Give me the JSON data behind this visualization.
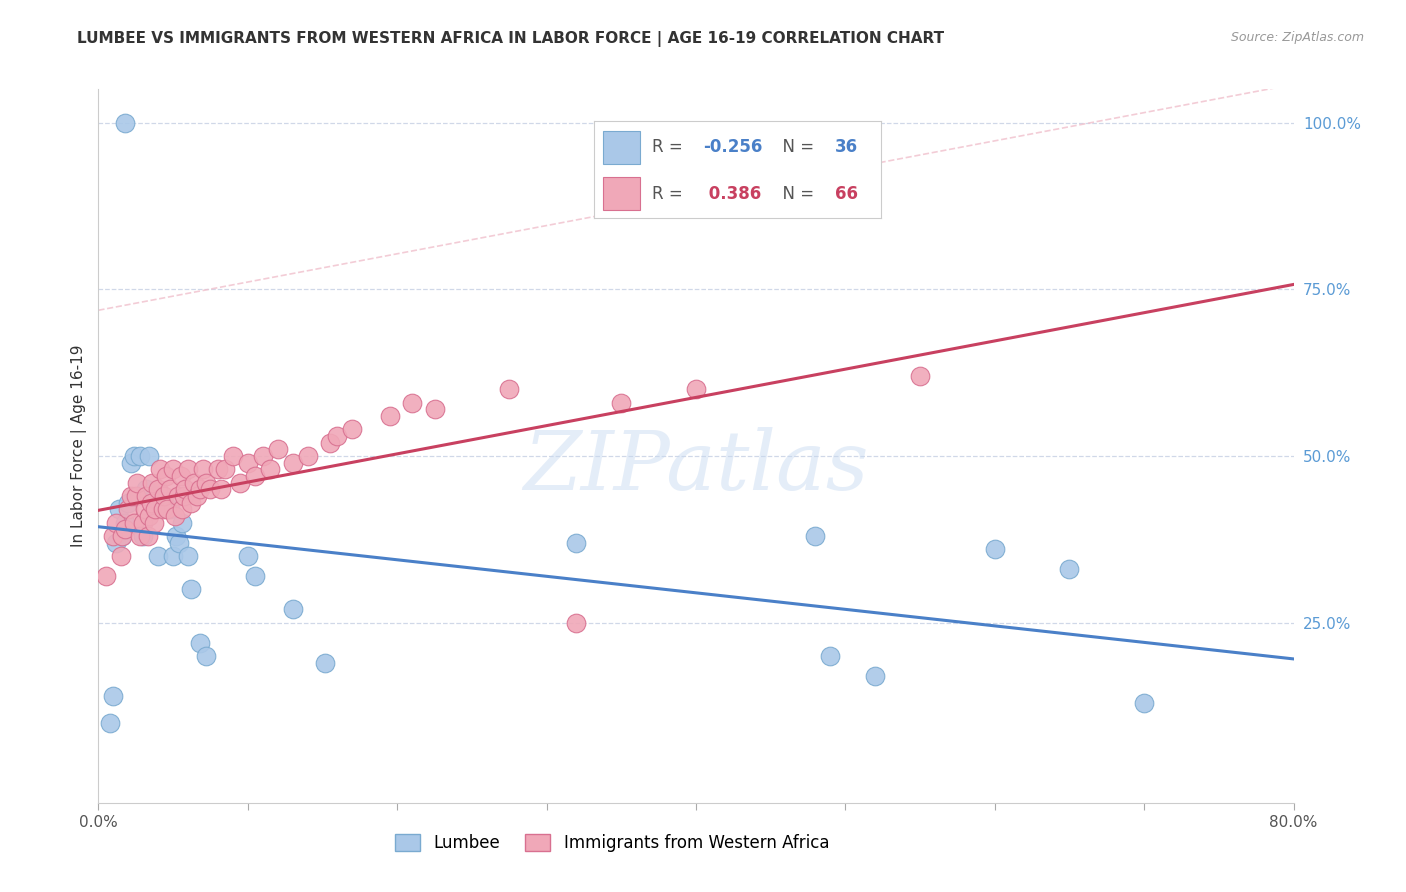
{
  "title": "LUMBEE VS IMMIGRANTS FROM WESTERN AFRICA IN LABOR FORCE | AGE 16-19 CORRELATION CHART",
  "source": "Source: ZipAtlas.com",
  "ylabel": "In Labor Force | Age 16-19",
  "xlim": [
    0.0,
    0.8
  ],
  "ylim": [
    -0.02,
    1.05
  ],
  "lumbee_color": "#aac8e8",
  "lumbee_edge_color": "#7aaad0",
  "immigrants_color": "#f0a8b8",
  "immigrants_edge_color": "#d87090",
  "lumbee_line_color": "#4a80c8",
  "immigrants_line_color": "#c84060",
  "immigrants_dashed_color": "#f0c0cc",
  "lumbee_R": -0.256,
  "lumbee_N": 36,
  "immigrants_R": 0.386,
  "immigrants_N": 66,
  "lumbee_x": [
    0.018,
    0.008,
    0.01,
    0.012,
    0.014,
    0.016,
    0.018,
    0.02,
    0.022,
    0.024,
    0.028,
    0.03,
    0.032,
    0.034,
    0.038,
    0.04,
    0.048,
    0.05,
    0.052,
    0.054,
    0.056,
    0.06,
    0.062,
    0.068,
    0.072,
    0.1,
    0.105,
    0.13,
    0.152,
    0.32,
    0.48,
    0.49,
    0.52,
    0.6,
    0.65,
    0.7
  ],
  "lumbee_y": [
    1.0,
    0.1,
    0.14,
    0.37,
    0.42,
    0.38,
    0.4,
    0.43,
    0.49,
    0.5,
    0.5,
    0.38,
    0.45,
    0.5,
    0.44,
    0.35,
    0.42,
    0.35,
    0.38,
    0.37,
    0.4,
    0.35,
    0.3,
    0.22,
    0.2,
    0.35,
    0.32,
    0.27,
    0.19,
    0.37,
    0.38,
    0.2,
    0.17,
    0.36,
    0.33,
    0.13
  ],
  "immigrants_x": [
    0.005,
    0.01,
    0.012,
    0.015,
    0.016,
    0.018,
    0.02,
    0.022,
    0.024,
    0.025,
    0.026,
    0.028,
    0.03,
    0.031,
    0.032,
    0.033,
    0.034,
    0.035,
    0.036,
    0.037,
    0.038,
    0.04,
    0.041,
    0.043,
    0.044,
    0.045,
    0.046,
    0.048,
    0.05,
    0.051,
    0.053,
    0.055,
    0.056,
    0.057,
    0.058,
    0.06,
    0.062,
    0.064,
    0.066,
    0.068,
    0.07,
    0.072,
    0.075,
    0.08,
    0.082,
    0.085,
    0.09,
    0.095,
    0.1,
    0.105,
    0.11,
    0.115,
    0.12,
    0.13,
    0.14,
    0.155,
    0.16,
    0.17,
    0.195,
    0.21,
    0.225,
    0.275,
    0.32,
    0.35,
    0.4,
    0.55
  ],
  "immigrants_y": [
    0.32,
    0.38,
    0.4,
    0.35,
    0.38,
    0.39,
    0.42,
    0.44,
    0.4,
    0.44,
    0.46,
    0.38,
    0.4,
    0.42,
    0.44,
    0.38,
    0.41,
    0.43,
    0.46,
    0.4,
    0.42,
    0.45,
    0.48,
    0.42,
    0.44,
    0.47,
    0.42,
    0.45,
    0.48,
    0.41,
    0.44,
    0.47,
    0.42,
    0.44,
    0.45,
    0.48,
    0.43,
    0.46,
    0.44,
    0.45,
    0.48,
    0.46,
    0.45,
    0.48,
    0.45,
    0.48,
    0.5,
    0.46,
    0.49,
    0.47,
    0.5,
    0.48,
    0.51,
    0.49,
    0.5,
    0.52,
    0.53,
    0.54,
    0.56,
    0.58,
    0.57,
    0.6,
    0.25,
    0.58,
    0.6,
    0.62
  ],
  "watermark": "ZIPatlas",
  "background_color": "#ffffff",
  "grid_color": "#d0d8e8",
  "yticks_right": [
    0.25,
    0.5,
    0.75,
    1.0
  ],
  "ytick_labels_right": [
    "25.0%",
    "50.0%",
    "75.0%",
    "100.0%"
  ]
}
